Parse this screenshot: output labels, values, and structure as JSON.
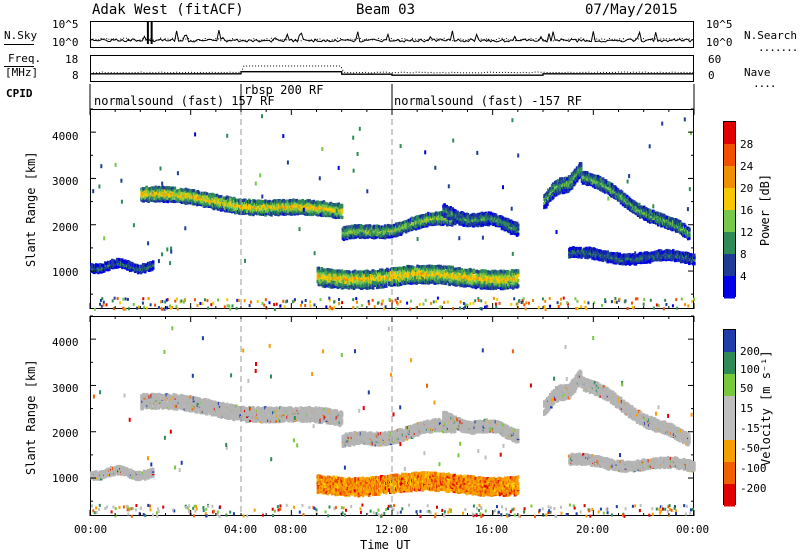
{
  "header": {
    "station": "Adak West (fitACF)",
    "beam": "Beam 03",
    "date": "07/May/2015"
  },
  "noise_panel": {
    "left_label": "N.Sky",
    "right_label": "N.Search",
    "left_ticks": [
      "10^5",
      "10^0"
    ],
    "right_ticks": [
      "10^5",
      "10^0"
    ]
  },
  "freq_panel": {
    "label_line1": "Freq.",
    "label_line2": "[MHz]",
    "left_ticks": [
      "18",
      "8"
    ],
    "right_ticks": [
      "60",
      "0"
    ],
    "right_label": "Nave"
  },
  "cpid_panel": {
    "label": "CPID",
    "segments": [
      "normalsound (fast) 157 RF",
      "rbsp 200 RF",
      "normalsound (fast) -157 RF"
    ]
  },
  "power_panel": {
    "ylabel": "Slant Range [km]",
    "yticks": [
      "4000",
      "3000",
      "2000",
      "1000"
    ],
    "colorbar_label": "Power [dB]",
    "colorbar_ticks": [
      "28",
      "24",
      "20",
      "16",
      "12",
      "8",
      "4"
    ]
  },
  "velocity_panel": {
    "ylabel": "Slant Range [km]",
    "yticks": [
      "4000",
      "3000",
      "2000",
      "1000"
    ],
    "colorbar_label": "Velocity [m s⁻¹]",
    "colorbar_ticks": [
      "200",
      "100",
      "50",
      "15",
      "-15",
      "-50",
      "-100",
      "-200"
    ]
  },
  "xaxis": {
    "ticks": [
      "00:00",
      "04:00",
      "08:00",
      "12:00",
      "16:00",
      "20:00",
      "00:00"
    ],
    "label": "Time UT"
  },
  "colors": {
    "power_scale": [
      "#e00000",
      "#f05000",
      "#f09000",
      "#f5c800",
      "#78c84b",
      "#2e8b57",
      "#1e3c96",
      "#0000e6"
    ],
    "velocity_scale": [
      "#1e3caa",
      "#2e8b57",
      "#78c83c",
      "#bebebe",
      "#bebebe",
      "#f5a000",
      "#f06000",
      "#e00000"
    ],
    "ground_scatter": "#b4b4b4"
  },
  "chart_data": {
    "type": "heatmap",
    "x_unit": "hours UT",
    "xlim": [
      0,
      24
    ],
    "ylim_km": [
      180,
      4500
    ],
    "power_range_db": [
      0,
      30
    ],
    "velocity_range_ms": [
      -200,
      200
    ],
    "cpid_segments_hours": [
      [
        0,
        6
      ],
      [
        6,
        12
      ],
      [
        12,
        24
      ]
    ],
    "freq_mhz": [
      [
        0,
        6,
        10.5
      ],
      [
        6,
        10,
        11.5
      ],
      [
        10,
        12,
        10.3
      ],
      [
        12,
        18,
        9.8
      ],
      [
        18,
        24,
        10.5
      ]
    ],
    "echo_regions": [
      {
        "t0": 2.0,
        "t1": 10.0,
        "range_start": 2700,
        "range_end": 2300,
        "width": 300,
        "power": 18,
        "velocity": 0
      },
      {
        "t0": 10.0,
        "t1": 14.5,
        "range_start": 1800,
        "range_end": 2200,
        "width": 250,
        "power": 14,
        "velocity": 0
      },
      {
        "t0": 14.0,
        "t1": 17.0,
        "range_start": 2300,
        "range_end": 2000,
        "width": 250,
        "power": 10,
        "velocity": 0
      },
      {
        "t0": 9.0,
        "t1": 17.0,
        "range_start": 920,
        "range_end": 920,
        "width": 380,
        "power": 18,
        "velocity": -60
      },
      {
        "t0": 0.0,
        "t1": 2.5,
        "range_start": 1150,
        "range_end": 1150,
        "width": 150,
        "power": 8,
        "velocity": 0
      },
      {
        "t0": 18.0,
        "t1": 19.5,
        "range_start": 2600,
        "range_end": 3200,
        "width": 300,
        "power": 12,
        "velocity": 0
      },
      {
        "t0": 19.5,
        "t1": 23.8,
        "range_start": 3100,
        "range_end": 1800,
        "width": 250,
        "power": 12,
        "velocity": 0
      },
      {
        "t0": 19.0,
        "t1": 24.0,
        "range_start": 1400,
        "range_end": 1300,
        "width": 200,
        "power": 8,
        "velocity": 0
      }
    ]
  }
}
